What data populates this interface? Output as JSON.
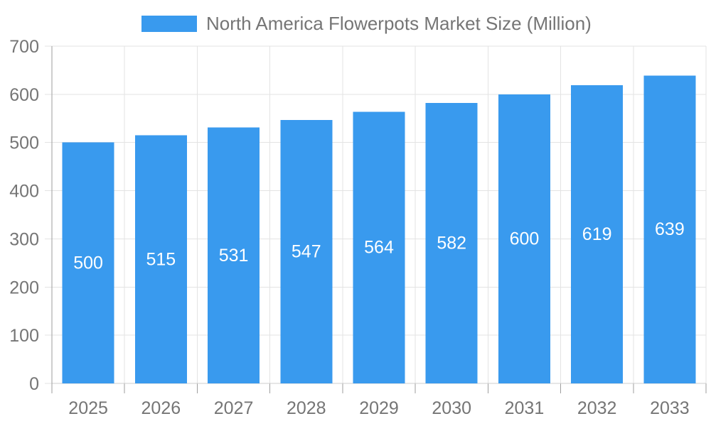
{
  "chart_data": {
    "type": "bar",
    "title": "North America Flowerpots Market Size (Million)",
    "categories": [
      "2025",
      "2026",
      "2027",
      "2028",
      "2029",
      "2030",
      "2031",
      "2032",
      "2033"
    ],
    "values": [
      500,
      515,
      531,
      547,
      564,
      582,
      600,
      619,
      639
    ],
    "series_name": "North America Flowerpots Market Size (Million)",
    "xlabel": "",
    "ylabel": "",
    "ylim": [
      0,
      700
    ],
    "yticks": [
      0,
      100,
      200,
      300,
      400,
      500,
      600,
      700
    ],
    "grid": true,
    "legend_position": "top",
    "bar_labels_shown": true
  },
  "legend": {
    "label": "North America Flowerpots Market Size (Million)"
  },
  "colors": {
    "bar": "#399AEE",
    "legend_swatch": "#399AEE",
    "axis_text": "#757575",
    "legend_text": "#757575",
    "bar_label_text": "#FFFFFF",
    "gridline": "#E3E3E3",
    "y_axis_line": "#9E9E9E",
    "x_axis_line": "#CCCCCC",
    "x_tick": "#9E9E9E",
    "y_tick": "#E3E3E3",
    "background": "#FFFFFF"
  }
}
